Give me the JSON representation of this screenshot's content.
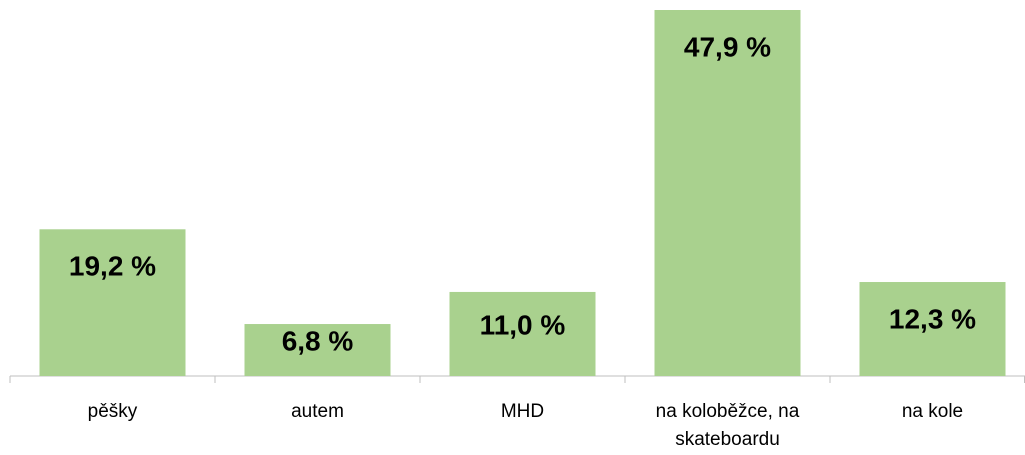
{
  "chart_data": {
    "type": "bar",
    "categories": [
      "pěšky",
      "autem",
      "MHD",
      "na koloběžce, na skateboardu",
      "na kole"
    ],
    "values": [
      19.2,
      6.8,
      11.0,
      47.9,
      12.3
    ],
    "value_labels": [
      "19,2 %",
      "6,8 %",
      "11,0 %",
      "47,9 %",
      "12,3 %"
    ],
    "color": "#a9d18e"
  }
}
